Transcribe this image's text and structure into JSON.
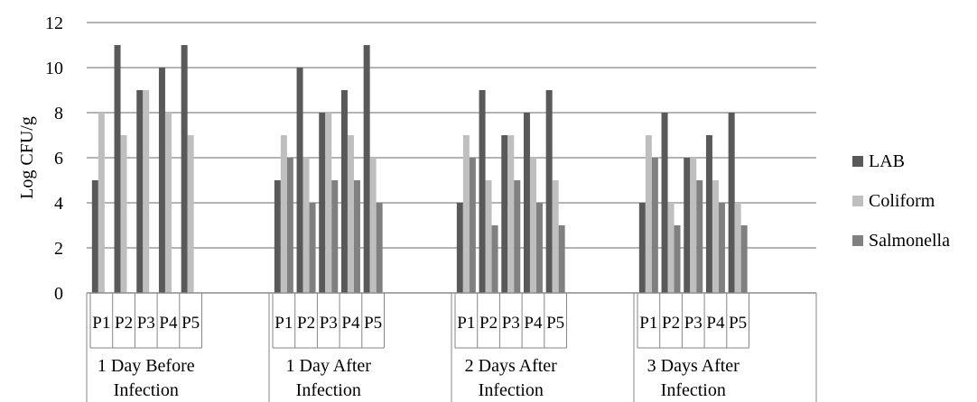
{
  "chart_data": {
    "type": "bar",
    "ylabel": "Log CFU/g",
    "ylim": [
      0,
      12
    ],
    "yticks": [
      "0",
      "2",
      "4",
      "6",
      "8",
      "10",
      "12"
    ],
    "grid": true,
    "legend_position": "right",
    "groups": [
      {
        "label": "1 Day Before\nInfection",
        "categories": [
          "P1",
          "P2",
          "P3",
          "P4",
          "P5"
        ]
      },
      {
        "label": "1 Day After\nInfection",
        "categories": [
          "P1",
          "P2",
          "P3",
          "P4",
          "P5"
        ]
      },
      {
        "label": "2 Days After\nInfection",
        "categories": [
          "P1",
          "P2",
          "P3",
          "P4",
          "P5"
        ]
      },
      {
        "label": "3 Days After\nInfection",
        "categories": [
          "P1",
          "P2",
          "P3",
          "P4",
          "P5"
        ]
      }
    ],
    "series": [
      {
        "name": "LAB",
        "color": "#595959",
        "values": [
          5,
          11,
          9,
          10,
          11,
          5,
          10,
          8,
          9,
          11,
          4,
          9,
          7,
          8,
          9,
          4,
          8,
          6,
          7,
          8
        ]
      },
      {
        "name": "Coliform",
        "color": "#bfbfbf",
        "values": [
          8,
          7,
          9,
          8,
          7,
          7,
          6,
          8,
          7,
          6,
          7,
          5,
          7,
          6,
          5,
          7,
          4,
          6,
          5,
          4
        ]
      },
      {
        "name": "Salmonella",
        "color": "#808080",
        "values": [
          0,
          0,
          0,
          0,
          0,
          6,
          4,
          5,
          5,
          4,
          6,
          3,
          5,
          4,
          3,
          6,
          3,
          5,
          4,
          3
        ]
      }
    ]
  }
}
